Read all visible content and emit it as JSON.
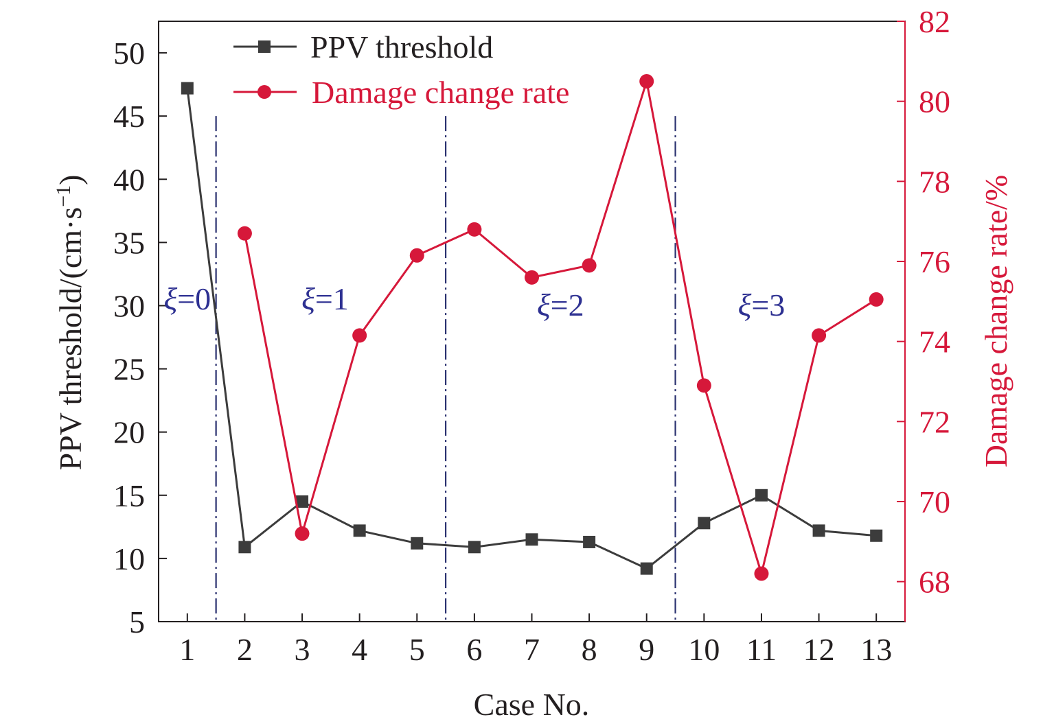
{
  "chart_data": {
    "type": "line",
    "x": [
      1,
      2,
      3,
      4,
      5,
      6,
      7,
      8,
      9,
      10,
      11,
      12,
      13
    ],
    "xlabel": "Case No.",
    "ylabel_left": "PPV threshold/(cm·s",
    "ylabel_left_sup": "−1",
    "ylabel_left_close": ")",
    "ylabel_right": "Damage change rate/%",
    "xlim": [
      0.5,
      13.5
    ],
    "ylim_left": [
      5,
      52.5
    ],
    "ylim_right": [
      67,
      82
    ],
    "xticks": [
      "1",
      "2",
      "3",
      "4",
      "5",
      "6",
      "7",
      "8",
      "9",
      "10",
      "11",
      "12",
      "13"
    ],
    "yticks_left": [
      "5",
      "10",
      "15",
      "20",
      "25",
      "30",
      "35",
      "40",
      "45",
      "50"
    ],
    "yticks_right": [
      "68",
      "70",
      "72",
      "74",
      "76",
      "78",
      "80",
      "82"
    ],
    "grid": false,
    "legend_position": "top-left",
    "series": [
      {
        "name": "PPV threshold",
        "axis": "left",
        "marker": "square",
        "color": "#3c3c3c",
        "values": [
          47.2,
          10.9,
          14.5,
          12.2,
          11.2,
          10.9,
          11.5,
          11.3,
          9.2,
          12.8,
          15.0,
          12.2,
          11.8
        ]
      },
      {
        "name": "Damage change rate",
        "axis": "right",
        "marker": "circle",
        "color": "#d6183a",
        "values": [
          null,
          76.7,
          69.2,
          74.15,
          76.15,
          76.8,
          75.6,
          75.9,
          80.5,
          72.9,
          68.2,
          74.15,
          75.05
        ]
      }
    ],
    "dividers_x": [
      1.5,
      5.5,
      9.5
    ],
    "annotations": [
      {
        "symbol": "ξ",
        "text": "=0",
        "x": 1,
        "y": 29.7
      },
      {
        "symbol": "ξ",
        "text": "=1",
        "x": 3.4,
        "y": 29.7
      },
      {
        "symbol": "ξ",
        "text": "=2",
        "x": 7.5,
        "y": 29.2
      },
      {
        "symbol": "ξ",
        "text": "=3",
        "x": 11,
        "y": 29.2
      }
    ]
  }
}
